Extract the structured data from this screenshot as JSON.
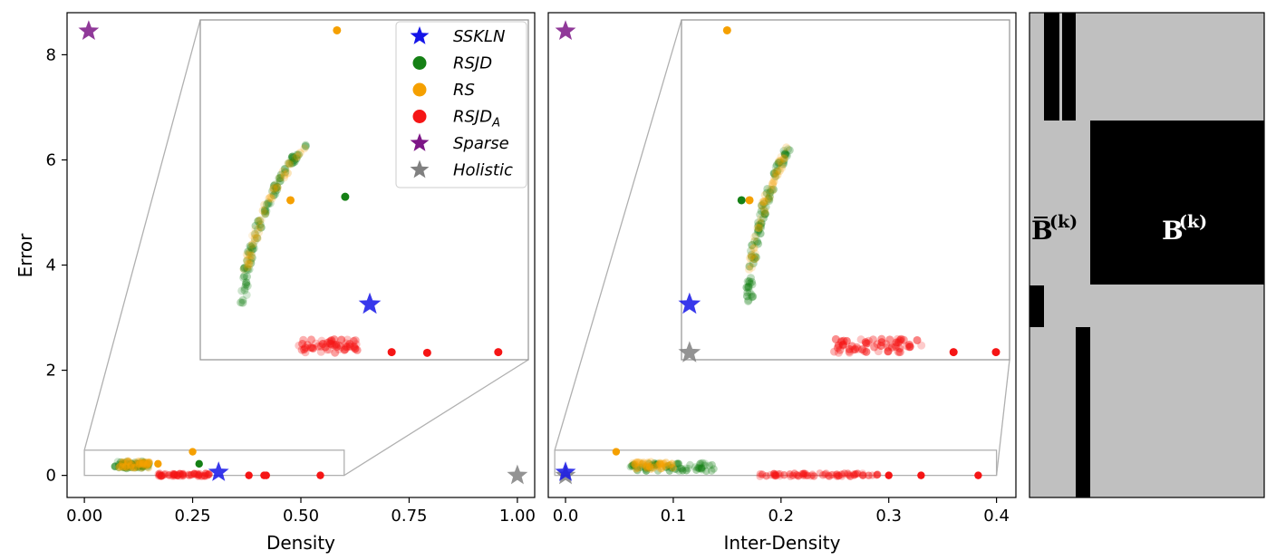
{
  "colors": {
    "SSKLN": "#1515e8",
    "RSJD": "#158015",
    "RS": "#f5a000",
    "RSJD_A": "#f51515",
    "Sparse": "#7d1687",
    "Holistic": "#808080",
    "matrix_bg": "#c0c0c0",
    "matrix_block": "#000000"
  },
  "legend": {
    "entries": [
      {
        "key": "SSKLN",
        "label": "SSKLN",
        "marker": "star-icon"
      },
      {
        "key": "RSJD",
        "label": "RSJD",
        "marker": "circle-icon"
      },
      {
        "key": "RS",
        "label": "RS",
        "marker": "circle-icon"
      },
      {
        "key": "RSJD_A",
        "label": "RSJD",
        "sub": "A",
        "marker": "circle-icon"
      },
      {
        "key": "Sparse",
        "label": "Sparse",
        "marker": "star-icon"
      },
      {
        "key": "Holistic",
        "label": "Holistic",
        "marker": "star-icon"
      }
    ]
  },
  "chart_data": [
    {
      "type": "scatter",
      "xlabel": "Density",
      "ylabel": "Error",
      "xlim": [
        -0.04,
        1.04
      ],
      "ylim": [
        -0.42,
        8.8
      ],
      "xticks": [
        0.0,
        0.25,
        0.5,
        0.75,
        1.0
      ],
      "xtick_labels": [
        "0.00",
        "0.25",
        "0.50",
        "0.75",
        "1.00"
      ],
      "yticks": [
        0,
        2,
        4,
        6,
        8
      ],
      "ytick_labels": [
        "0",
        "2",
        "4",
        "6",
        "8"
      ],
      "legend_position": "top-right",
      "zoom_region": {
        "x": [
          0.0,
          0.6
        ],
        "y": [
          0.0,
          0.48
        ]
      },
      "stars": [
        {
          "series": "SSKLN",
          "x": 0.31,
          "y": 0.06
        },
        {
          "series": "Sparse",
          "x": 0.01,
          "y": 8.45
        },
        {
          "series": "Holistic",
          "x": 1.0,
          "y": 0.0
        }
      ],
      "clusters": [
        {
          "series": "RSJD",
          "x": [
            0.07,
            0.15
          ],
          "y": [
            0.13,
            0.27
          ],
          "count": 70,
          "opacity": 0.45
        },
        {
          "series": "RS",
          "x": [
            0.08,
            0.15
          ],
          "y": [
            0.14,
            0.28
          ],
          "count": 45,
          "opacity": 0.45
        },
        {
          "series": "RSJD_A",
          "x": [
            0.17,
            0.29
          ],
          "y": [
            -0.02,
            0.04
          ],
          "count": 60,
          "opacity": 0.5
        }
      ],
      "points": [
        {
          "series": "RS",
          "x": 0.25,
          "y": 0.45
        },
        {
          "series": "RS",
          "x": 0.17,
          "y": 0.22
        },
        {
          "series": "RSJD",
          "x": 0.265,
          "y": 0.22
        },
        {
          "series": "RSJD_A",
          "x": 0.38,
          "y": 0.0
        },
        {
          "series": "RSJD_A",
          "x": 0.415,
          "y": 0.0
        },
        {
          "series": "RSJD_A",
          "x": 0.42,
          "y": 0.0
        },
        {
          "series": "RSJD_A",
          "x": 0.545,
          "y": 0.0
        }
      ],
      "inset": {
        "xlim": [
          0.0,
          0.6
        ],
        "ylim": [
          -0.01,
          0.48
        ],
        "stars": [
          {
            "series": "SSKLN",
            "x": 0.31,
            "y": 0.07
          }
        ],
        "curves": [
          {
            "series": "RSJD",
            "y": [
              0.07,
              0.3
            ],
            "x_of_y": "0.08+0.11*((y-0.07)/0.23)^2",
            "count": 80,
            "opacity": 0.45
          },
          {
            "series": "RS",
            "y": [
              0.12,
              0.3
            ],
            "x_of_y": "0.08+0.11*((y-0.07)/0.23)^2",
            "count": 50,
            "opacity": 0.3
          }
        ],
        "clusters": [
          {
            "series": "RSJD_A",
            "x": [
              0.18,
              0.29
            ],
            "y": [
              0.0,
              0.02
            ],
            "count": 55,
            "opacity": 0.55
          }
        ],
        "points": [
          {
            "series": "RS",
            "x": 0.25,
            "y": 0.465
          },
          {
            "series": "RS",
            "x": 0.165,
            "y": 0.22
          },
          {
            "series": "RSJD",
            "x": 0.265,
            "y": 0.225
          },
          {
            "series": "RSJD_A",
            "x": 0.35,
            "y": 0.001
          },
          {
            "series": "RSJD_A",
            "x": 0.415,
            "y": 0.0
          },
          {
            "series": "RSJD_A",
            "x": 0.545,
            "y": 0.001
          }
        ]
      }
    },
    {
      "type": "scatter",
      "xlabel": "Inter-Density",
      "ylabel": "",
      "xlim": [
        -0.016,
        0.418
      ],
      "ylim": [
        -0.42,
        8.8
      ],
      "xticks": [
        0.0,
        0.1,
        0.2,
        0.3,
        0.4
      ],
      "xtick_labels": [
        "0.0",
        "0.1",
        "0.2",
        "0.3",
        "0.4"
      ],
      "zoom_region": {
        "x": [
          -0.01,
          0.4
        ],
        "y": [
          0.0,
          0.48
        ]
      },
      "stars": [
        {
          "series": "Holistic",
          "x": 0.0,
          "y": 0.0
        },
        {
          "series": "SSKLN",
          "x": 0.0,
          "y": 0.06
        },
        {
          "series": "Sparse",
          "x": 0.0,
          "y": 8.45
        }
      ],
      "clusters": [
        {
          "series": "RSJD",
          "x": [
            0.06,
            0.14
          ],
          "y": [
            0.08,
            0.24
          ],
          "count": 70,
          "opacity": 0.45
        },
        {
          "series": "RS",
          "x": [
            0.06,
            0.1
          ],
          "y": [
            0.12,
            0.26
          ],
          "count": 40,
          "opacity": 0.45
        },
        {
          "series": "RSJD_A",
          "x": [
            0.18,
            0.29
          ],
          "y": [
            -0.02,
            0.04
          ],
          "count": 70,
          "opacity": 0.5
        }
      ],
      "points": [
        {
          "series": "RS",
          "x": 0.047,
          "y": 0.45
        },
        {
          "series": "RSJD_A",
          "x": 0.3,
          "y": 0.0
        },
        {
          "series": "RSJD_A",
          "x": 0.33,
          "y": 0.0
        },
        {
          "series": "RSJD_A",
          "x": 0.383,
          "y": 0.0
        }
      ],
      "inset": {
        "xlim": [
          -0.01,
          0.4
        ],
        "ylim": [
          -0.01,
          0.48
        ],
        "stars": [
          {
            "series": "SSKLN",
            "x": 0.0,
            "y": 0.07
          },
          {
            "series": "Holistic",
            "x": 0.0,
            "y": 0.0
          }
        ],
        "curves": [
          {
            "series": "RSJD",
            "y": [
              0.07,
              0.3
            ],
            "x_of_y": "0.075+0.05*((y-0.07)/0.23)^2",
            "count": 80,
            "opacity": 0.45
          },
          {
            "series": "RS",
            "y": [
              0.12,
              0.3
            ],
            "x_of_y": "0.075+0.05*((y-0.07)/0.23)^2",
            "count": 50,
            "opacity": 0.3
          }
        ],
        "clusters": [
          {
            "series": "RSJD_A",
            "x": [
              0.18,
              0.29
            ],
            "y": [
              0.0,
              0.02
            ],
            "count": 60,
            "opacity": 0.55
          }
        ],
        "points": [
          {
            "series": "RS",
            "x": 0.047,
            "y": 0.465
          },
          {
            "series": "RSJD",
            "x": 0.065,
            "y": 0.22
          },
          {
            "series": "RS",
            "x": 0.075,
            "y": 0.22
          },
          {
            "series": "RSJD_A",
            "x": 0.33,
            "y": 0.001
          },
          {
            "series": "RSJD_A",
            "x": 0.383,
            "y": 0.001
          }
        ]
      }
    }
  ],
  "matrix": {
    "label_bar": "B",
    "label_bar_sup": "(k)",
    "label_block": "B",
    "label_block_sup": "(k)"
  }
}
